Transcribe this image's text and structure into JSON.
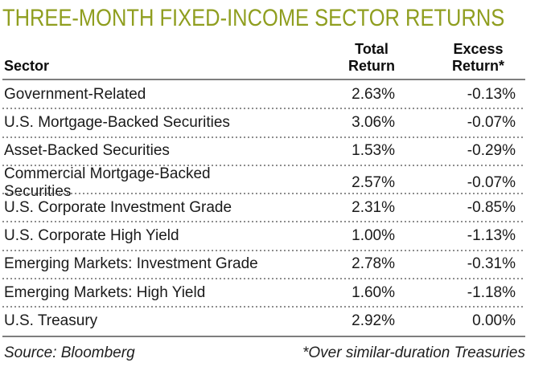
{
  "title": "THREE-MONTH FIXED-INCOME SECTOR RETURNS",
  "colors": {
    "title_green": "#8f9e1f",
    "text": "#1a1a1a",
    "rule_line": "#7e7e7e",
    "dotted_line": "#8e8e8e"
  },
  "table": {
    "headers": {
      "sector": "Sector",
      "total_line1": "Total",
      "total_line2": "Return",
      "excess_line1": "Excess",
      "excess_line2": "Return*"
    },
    "rows": [
      {
        "sector": "Government-Related",
        "total": "2.63%",
        "excess": "-0.13%"
      },
      {
        "sector": "U.S. Mortgage-Backed Securities",
        "total": "3.06%",
        "excess": "-0.07%"
      },
      {
        "sector": "Asset-Backed Securities",
        "total": "1.53%",
        "excess": "-0.29%"
      },
      {
        "sector": "Commercial Mortgage-Backed Securities",
        "total": "2.57%",
        "excess": "-0.07%"
      },
      {
        "sector": "U.S. Corporate Investment Grade",
        "total": "2.31%",
        "excess": "-0.85%"
      },
      {
        "sector": "U.S. Corporate High Yield",
        "total": "1.00%",
        "excess": "-1.13%"
      },
      {
        "sector": "Emerging Markets: Investment Grade",
        "total": "2.78%",
        "excess": "-0.31%"
      },
      {
        "sector": "Emerging Markets: High Yield",
        "total": "1.60%",
        "excess": "-1.18%"
      },
      {
        "sector": "U.S. Treasury",
        "total": "2.92%",
        "excess": "0.00%"
      }
    ]
  },
  "footer": {
    "source": "Source: Bloomberg",
    "note": "*Over similar-duration Treasuries"
  },
  "chart_data": {
    "type": "table",
    "title": "THREE-MONTH FIXED-INCOME SECTOR RETURNS",
    "columns": [
      "Sector",
      "Total Return",
      "Excess Return*"
    ],
    "units": "percent",
    "rows": [
      [
        "Government-Related",
        2.63,
        -0.13
      ],
      [
        "U.S. Mortgage-Backed Securities",
        3.06,
        -0.07
      ],
      [
        "Asset-Backed Securities",
        1.53,
        -0.29
      ],
      [
        "Commercial Mortgage-Backed Securities",
        2.57,
        -0.07
      ],
      [
        "U.S. Corporate Investment Grade",
        2.31,
        -0.85
      ],
      [
        "U.S. Corporate High Yield",
        1.0,
        -1.13
      ],
      [
        "Emerging Markets: Investment Grade",
        2.78,
        -0.31
      ],
      [
        "Emerging Markets: High Yield",
        1.6,
        -1.18
      ],
      [
        "U.S. Treasury",
        2.92,
        0.0
      ]
    ],
    "source": "Bloomberg",
    "footnote": "*Over similar-duration Treasuries"
  }
}
